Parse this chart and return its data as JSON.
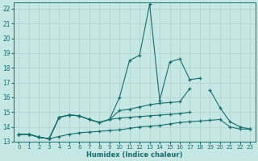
{
  "xlabel": "Humidex (Indice chaleur)",
  "bg_color": "#c5e8e5",
  "grid_color": "#b0d0ce",
  "line_color": "#1a6b6b",
  "xlim": [
    -0.5,
    23.5
  ],
  "ylim": [
    13,
    22.4
  ],
  "yticks": [
    13,
    14,
    15,
    16,
    17,
    18,
    19,
    20,
    21,
    22
  ],
  "xticks": [
    0,
    1,
    2,
    3,
    4,
    5,
    6,
    7,
    8,
    9,
    10,
    11,
    12,
    13,
    14,
    15,
    16,
    17,
    18,
    19,
    20,
    21,
    22,
    23
  ],
  "series": [
    {
      "x": [
        0,
        1,
        2,
        3,
        4,
        5,
        6,
        7,
        8,
        9,
        10,
        11,
        12,
        13,
        14,
        15,
        16,
        17,
        18,
        19,
        20,
        21,
        22,
        23
      ],
      "y": [
        13.5,
        13.5,
        13.3,
        13.2,
        14.65,
        14.8,
        14.75,
        14.5,
        14.3,
        14.5,
        16.0,
        18.5,
        18.85,
        22.3,
        15.8,
        18.4,
        18.6,
        17.2,
        17.3,
        null,
        null,
        null,
        null,
        null
      ]
    },
    {
      "x": [
        0,
        1,
        2,
        3,
        4,
        5,
        6,
        7,
        8,
        9,
        10,
        11,
        12,
        13,
        14,
        15,
        16,
        17,
        18,
        19,
        20,
        21,
        22,
        23
      ],
      "y": [
        13.5,
        13.5,
        13.3,
        13.2,
        14.65,
        14.8,
        14.75,
        14.5,
        14.3,
        14.5,
        15.1,
        15.2,
        15.35,
        15.5,
        15.6,
        15.65,
        15.7,
        16.6,
        null,
        16.5,
        15.3,
        14.35,
        14.0,
        13.85
      ]
    },
    {
      "x": [
        0,
        1,
        2,
        3,
        4,
        5,
        6,
        7,
        8,
        9,
        10,
        11,
        12,
        13,
        14,
        15,
        16,
        17,
        18,
        19,
        20,
        21,
        22,
        23
      ],
      "y": [
        13.5,
        13.5,
        13.3,
        13.2,
        14.65,
        14.8,
        14.75,
        14.5,
        14.3,
        14.5,
        14.6,
        14.65,
        14.7,
        14.75,
        14.8,
        14.85,
        14.9,
        15.0,
        null,
        null,
        null,
        null,
        null,
        null
      ]
    },
    {
      "x": [
        0,
        1,
        2,
        3,
        4,
        5,
        6,
        7,
        8,
        9,
        10,
        11,
        12,
        13,
        14,
        15,
        16,
        17,
        18,
        19,
        20,
        21,
        22,
        23
      ],
      "y": [
        13.5,
        13.5,
        13.3,
        13.2,
        13.35,
        13.5,
        13.6,
        13.65,
        13.7,
        13.75,
        13.8,
        13.9,
        14.0,
        14.05,
        14.1,
        14.2,
        14.3,
        14.35,
        14.4,
        14.45,
        14.5,
        14.0,
        13.85,
        13.85
      ]
    }
  ]
}
